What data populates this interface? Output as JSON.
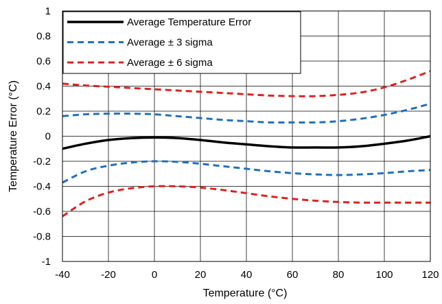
{
  "chart_data": {
    "type": "line",
    "title": "",
    "xlabel": "Temperature (°C)",
    "ylabel": "Temperature Error (°C)",
    "xlim": [
      -40,
      120
    ],
    "ylim": [
      -1,
      1
    ],
    "xticks": [
      -40,
      -20,
      0,
      20,
      40,
      60,
      80,
      100,
      120
    ],
    "yticks": [
      -1,
      -0.8,
      -0.6,
      -0.4,
      -0.2,
      0,
      0.2,
      0.4,
      0.6,
      0.8,
      1
    ],
    "xtick_labels": [
      "-40",
      "-20",
      "0",
      "20",
      "40",
      "60",
      "80",
      "100",
      "120"
    ],
    "ytick_labels": [
      "-1",
      "-0.8",
      "-0.6",
      "-0.4",
      "-0.2",
      "0",
      "0.2",
      "0.4",
      "0.6",
      "0.8",
      "1"
    ],
    "grid": true,
    "legend_position": "top-left",
    "series": [
      {
        "name": "Average Temperature Error",
        "style": "solid",
        "color": "#000000",
        "x": [
          -40,
          -30,
          -20,
          -10,
          0,
          10,
          20,
          30,
          40,
          50,
          60,
          70,
          80,
          90,
          100,
          110,
          120
        ],
        "y": [
          -0.1,
          -0.06,
          -0.03,
          -0.015,
          -0.01,
          -0.015,
          -0.03,
          -0.05,
          -0.065,
          -0.08,
          -0.09,
          -0.09,
          -0.09,
          -0.08,
          -0.06,
          -0.035,
          0.0
        ]
      },
      {
        "name": "Average ± 3 sigma",
        "style": "dashed",
        "color": "#1f6fbf",
        "x": [
          -40,
          -30,
          -20,
          -10,
          0,
          10,
          20,
          30,
          40,
          50,
          60,
          70,
          80,
          90,
          100,
          110,
          120
        ],
        "y": [
          0.16,
          0.175,
          0.18,
          0.18,
          0.175,
          0.16,
          0.145,
          0.13,
          0.12,
          0.11,
          0.11,
          0.11,
          0.12,
          0.14,
          0.17,
          0.21,
          0.26
        ]
      },
      {
        "name": "",
        "style": "dashed",
        "color": "#1f6fbf",
        "x": [
          -40,
          -30,
          -20,
          -10,
          0,
          10,
          20,
          30,
          40,
          50,
          60,
          70,
          80,
          90,
          100,
          110,
          120
        ],
        "y": [
          -0.37,
          -0.28,
          -0.235,
          -0.21,
          -0.2,
          -0.205,
          -0.22,
          -0.24,
          -0.26,
          -0.28,
          -0.295,
          -0.305,
          -0.31,
          -0.305,
          -0.295,
          -0.28,
          -0.27
        ]
      },
      {
        "name": "Average ± 6 sigma",
        "style": "dashed",
        "color": "#e02020",
        "x": [
          -40,
          -30,
          -20,
          -10,
          0,
          10,
          20,
          30,
          40,
          50,
          60,
          70,
          80,
          90,
          100,
          110,
          120
        ],
        "y": [
          0.42,
          0.405,
          0.395,
          0.385,
          0.375,
          0.365,
          0.355,
          0.345,
          0.335,
          0.325,
          0.32,
          0.32,
          0.33,
          0.35,
          0.39,
          0.45,
          0.52
        ]
      },
      {
        "name": "",
        "style": "dashed",
        "color": "#e02020",
        "x": [
          -40,
          -30,
          -20,
          -10,
          0,
          10,
          20,
          30,
          40,
          50,
          60,
          70,
          80,
          90,
          100,
          110,
          120
        ],
        "y": [
          -0.64,
          -0.52,
          -0.45,
          -0.415,
          -0.4,
          -0.4,
          -0.41,
          -0.43,
          -0.455,
          -0.48,
          -0.5,
          -0.515,
          -0.525,
          -0.53,
          -0.53,
          -0.53,
          -0.53
        ]
      }
    ]
  }
}
